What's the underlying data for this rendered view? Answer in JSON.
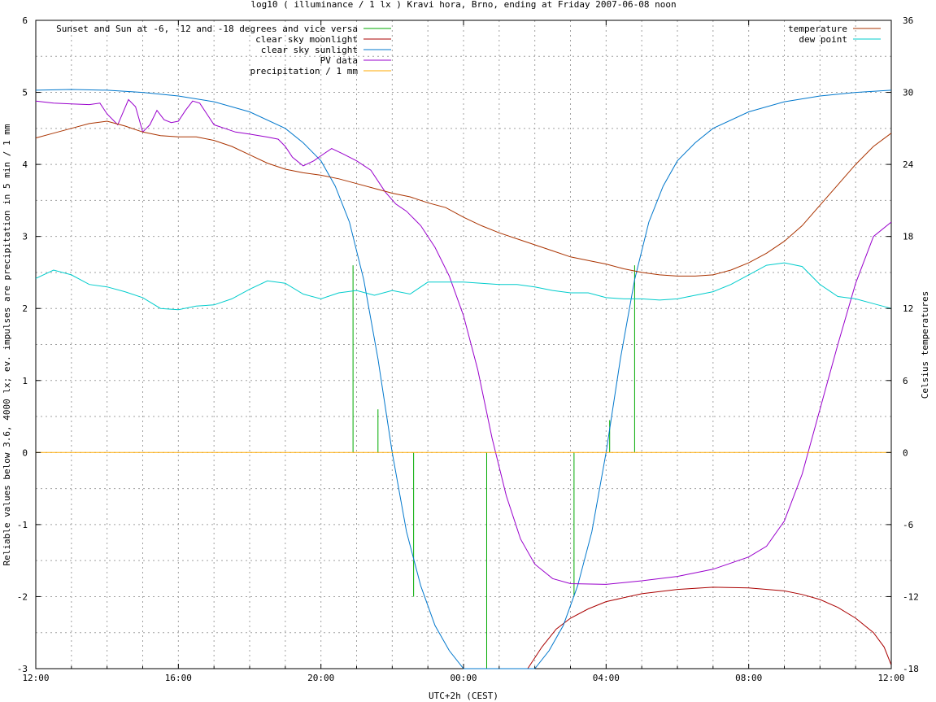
{
  "chart_data": {
    "type": "line",
    "title": "log10 ( illuminance / 1 lx ) Kravi hora, Brno, ending at Friday 2007-06-08 noon",
    "xlabel": "UTC+2h (CEST)",
    "ylabel": "Reliable values below 3.6, 4000 lx; ev. impulses are precipitation in 5 min / 1 mm",
    "y2label": "Celsius temperatures",
    "xlim": [
      0,
      24
    ],
    "ylim": [
      -3,
      6
    ],
    "y2lim": [
      -18,
      36
    ],
    "grid": true,
    "x_ticks": [
      {
        "x": 0,
        "label": "12:00"
      },
      {
        "x": 4,
        "label": "16:00"
      },
      {
        "x": 8,
        "label": "20:00"
      },
      {
        "x": 12,
        "label": "00:00"
      },
      {
        "x": 16,
        "label": "04:00"
      },
      {
        "x": 20,
        "label": "08:00"
      },
      {
        "x": 24,
        "label": "12:00"
      }
    ],
    "y_ticks": [
      {
        "v": -3,
        "label": "-3"
      },
      {
        "v": -2,
        "label": "-2"
      },
      {
        "v": -1,
        "label": "-1"
      },
      {
        "v": 0,
        "label": "0"
      },
      {
        "v": 1,
        "label": "1"
      },
      {
        "v": 2,
        "label": "2"
      },
      {
        "v": 3,
        "label": "3"
      },
      {
        "v": 4,
        "label": "4"
      },
      {
        "v": 5,
        "label": "5"
      },
      {
        "v": 6,
        "label": "6"
      }
    ],
    "y2_ticks": [
      {
        "v": -18,
        "label": "-18"
      },
      {
        "v": -12,
        "label": "-12"
      },
      {
        "v": -6,
        "label": "-6"
      },
      {
        "v": 0,
        "label": "0"
      },
      {
        "v": 6,
        "label": "6"
      },
      {
        "v": 12,
        "label": "12"
      },
      {
        "v": 18,
        "label": "18"
      },
      {
        "v": 24,
        "label": "24"
      },
      {
        "v": 30,
        "label": "30"
      },
      {
        "v": 36,
        "label": "36"
      }
    ],
    "legend_left": [
      {
        "label": "Sunset and Sun at -6, -12 and -18 degrees and vice versa",
        "color": "#00aa00"
      },
      {
        "label": "clear sky moonlight",
        "color": "#aa0000"
      },
      {
        "label": "clear sky sunlight",
        "color": "#0077cc"
      },
      {
        "label": "PV data",
        "color": "#9900cc"
      },
      {
        "label": "precipitation / 1 mm",
        "color": "#ffaa00"
      }
    ],
    "legend_right": [
      {
        "label": "temperature",
        "color": "#aa3300"
      },
      {
        "label": "dew point",
        "color": "#00cccc"
      }
    ],
    "series": [
      {
        "name": "Sunset and Sun at -6, -12 and -18 degrees and vice versa",
        "color": "#00aa00",
        "type": "impulse",
        "points": [
          [
            8.9,
            2.6
          ],
          [
            9.6,
            0.6
          ],
          [
            10.6,
            -2.0
          ],
          [
            12.65,
            -3.0
          ],
          [
            15.1,
            -2.0
          ],
          [
            16.1,
            0.45
          ],
          [
            16.8,
            2.6
          ]
        ]
      },
      {
        "name": "clear sky moonlight",
        "color": "#aa0000",
        "axis": "y",
        "points": [
          [
            13.8,
            -3.0
          ],
          [
            14.2,
            -2.7
          ],
          [
            14.6,
            -2.45
          ],
          [
            15.0,
            -2.3
          ],
          [
            15.5,
            -2.17
          ],
          [
            16.0,
            -2.07
          ],
          [
            17.0,
            -1.96
          ],
          [
            18.0,
            -1.9
          ],
          [
            19.0,
            -1.87
          ],
          [
            20.0,
            -1.88
          ],
          [
            21.0,
            -1.92
          ],
          [
            21.5,
            -1.97
          ],
          [
            22.0,
            -2.04
          ],
          [
            22.5,
            -2.15
          ],
          [
            23.0,
            -2.3
          ],
          [
            23.5,
            -2.5
          ],
          [
            23.8,
            -2.7
          ],
          [
            24.0,
            -2.95
          ]
        ]
      },
      {
        "name": "clear sky sunlight",
        "color": "#0077cc",
        "axis": "y",
        "points": [
          [
            0,
            5.03
          ],
          [
            1.0,
            5.04
          ],
          [
            2.0,
            5.03
          ],
          [
            3.0,
            5.0
          ],
          [
            4.0,
            4.95
          ],
          [
            5.0,
            4.87
          ],
          [
            6.0,
            4.73
          ],
          [
            7.0,
            4.5
          ],
          [
            7.5,
            4.3
          ],
          [
            8.0,
            4.05
          ],
          [
            8.4,
            3.7
          ],
          [
            8.8,
            3.2
          ],
          [
            9.2,
            2.4
          ],
          [
            9.6,
            1.3
          ],
          [
            10.0,
            0.0
          ],
          [
            10.4,
            -1.1
          ],
          [
            10.8,
            -1.85
          ],
          [
            11.2,
            -2.4
          ],
          [
            11.6,
            -2.75
          ],
          [
            12.0,
            -3.0
          ],
          [
            14.0,
            -3.0
          ],
          [
            14.4,
            -2.75
          ],
          [
            14.8,
            -2.4
          ],
          [
            15.2,
            -1.85
          ],
          [
            15.6,
            -1.1
          ],
          [
            16.0,
            0.0
          ],
          [
            16.4,
            1.3
          ],
          [
            16.8,
            2.4
          ],
          [
            17.2,
            3.2
          ],
          [
            17.6,
            3.7
          ],
          [
            18.0,
            4.05
          ],
          [
            18.5,
            4.3
          ],
          [
            19.0,
            4.5
          ],
          [
            20.0,
            4.73
          ],
          [
            21.0,
            4.87
          ],
          [
            22.0,
            4.95
          ],
          [
            23.0,
            5.0
          ],
          [
            24.0,
            5.03
          ]
        ]
      },
      {
        "name": "PV data",
        "color": "#9900cc",
        "axis": "y",
        "points": [
          [
            0,
            4.88
          ],
          [
            0.5,
            4.85
          ],
          [
            1.0,
            4.84
          ],
          [
            1.5,
            4.83
          ],
          [
            1.8,
            4.85
          ],
          [
            2.0,
            4.7
          ],
          [
            2.3,
            4.55
          ],
          [
            2.6,
            4.9
          ],
          [
            2.8,
            4.8
          ],
          [
            3.0,
            4.45
          ],
          [
            3.2,
            4.55
          ],
          [
            3.4,
            4.75
          ],
          [
            3.6,
            4.62
          ],
          [
            3.8,
            4.58
          ],
          [
            4.0,
            4.6
          ],
          [
            4.2,
            4.75
          ],
          [
            4.4,
            4.88
          ],
          [
            4.6,
            4.85
          ],
          [
            4.8,
            4.7
          ],
          [
            5.0,
            4.55
          ],
          [
            5.3,
            4.5
          ],
          [
            5.6,
            4.45
          ],
          [
            6.0,
            4.42
          ],
          [
            6.5,
            4.38
          ],
          [
            6.8,
            4.35
          ],
          [
            7.0,
            4.25
          ],
          [
            7.2,
            4.1
          ],
          [
            7.5,
            3.98
          ],
          [
            7.8,
            4.05
          ],
          [
            8.0,
            4.12
          ],
          [
            8.3,
            4.22
          ],
          [
            8.6,
            4.15
          ],
          [
            9.0,
            4.05
          ],
          [
            9.4,
            3.92
          ],
          [
            9.8,
            3.62
          ],
          [
            10.1,
            3.45
          ],
          [
            10.4,
            3.35
          ],
          [
            10.8,
            3.15
          ],
          [
            11.2,
            2.85
          ],
          [
            11.6,
            2.45
          ],
          [
            12.0,
            1.9
          ],
          [
            12.4,
            1.15
          ],
          [
            12.8,
            0.2
          ],
          [
            13.2,
            -0.6
          ],
          [
            13.6,
            -1.2
          ],
          [
            14.0,
            -1.55
          ],
          [
            14.5,
            -1.75
          ],
          [
            15.0,
            -1.82
          ],
          [
            16.0,
            -1.83
          ],
          [
            17.0,
            -1.78
          ],
          [
            18.0,
            -1.72
          ],
          [
            19.0,
            -1.62
          ],
          [
            20.0,
            -1.45
          ],
          [
            20.5,
            -1.3
          ],
          [
            21.0,
            -0.95
          ],
          [
            21.5,
            -0.3
          ],
          [
            22.0,
            0.6
          ],
          [
            22.5,
            1.5
          ],
          [
            23.0,
            2.35
          ],
          [
            23.5,
            3.0
          ],
          [
            24.0,
            3.2
          ]
        ]
      },
      {
        "name": "precipitation / 1 mm",
        "color": "#ffaa00",
        "axis": "y",
        "points": [
          [
            0,
            0.0
          ],
          [
            24,
            0.0
          ]
        ]
      },
      {
        "name": "temperature",
        "color": "#aa3300",
        "axis": "y2",
        "points": [
          [
            0,
            26.2
          ],
          [
            0.5,
            26.6
          ],
          [
            1.0,
            27.0
          ],
          [
            1.5,
            27.4
          ],
          [
            2.0,
            27.6
          ],
          [
            2.5,
            27.2
          ],
          [
            3.0,
            26.7
          ],
          [
            3.5,
            26.4
          ],
          [
            4.0,
            26.3
          ],
          [
            4.5,
            26.3
          ],
          [
            5.0,
            26.0
          ],
          [
            5.5,
            25.5
          ],
          [
            6.0,
            24.8
          ],
          [
            6.5,
            24.1
          ],
          [
            7.0,
            23.6
          ],
          [
            7.5,
            23.3
          ],
          [
            8.0,
            23.1
          ],
          [
            8.5,
            22.8
          ],
          [
            9.0,
            22.4
          ],
          [
            9.5,
            22.0
          ],
          [
            10.0,
            21.6
          ],
          [
            10.5,
            21.3
          ],
          [
            11.0,
            20.8
          ],
          [
            11.5,
            20.4
          ],
          [
            12.0,
            19.6
          ],
          [
            12.5,
            18.9
          ],
          [
            13.0,
            18.3
          ],
          [
            13.5,
            17.8
          ],
          [
            14.0,
            17.3
          ],
          [
            14.5,
            16.8
          ],
          [
            15.0,
            16.3
          ],
          [
            15.5,
            16.0
          ],
          [
            16.0,
            15.7
          ],
          [
            16.5,
            15.3
          ],
          [
            17.0,
            15.0
          ],
          [
            17.5,
            14.8
          ],
          [
            18.0,
            14.7
          ],
          [
            18.5,
            14.7
          ],
          [
            19.0,
            14.8
          ],
          [
            19.5,
            15.2
          ],
          [
            20.0,
            15.8
          ],
          [
            20.5,
            16.6
          ],
          [
            21.0,
            17.6
          ],
          [
            21.5,
            18.9
          ],
          [
            22.0,
            20.6
          ],
          [
            22.5,
            22.3
          ],
          [
            23.0,
            24.0
          ],
          [
            23.5,
            25.5
          ],
          [
            24.0,
            26.6
          ]
        ]
      },
      {
        "name": "dew point",
        "color": "#00cccc",
        "axis": "y2",
        "points": [
          [
            0,
            14.5
          ],
          [
            0.5,
            15.2
          ],
          [
            1.0,
            14.8
          ],
          [
            1.5,
            14.0
          ],
          [
            2.0,
            13.8
          ],
          [
            2.5,
            13.4
          ],
          [
            3.0,
            12.9
          ],
          [
            3.5,
            12.0
          ],
          [
            4.0,
            11.9
          ],
          [
            4.5,
            12.2
          ],
          [
            5.0,
            12.3
          ],
          [
            5.5,
            12.8
          ],
          [
            6.0,
            13.6
          ],
          [
            6.5,
            14.3
          ],
          [
            7.0,
            14.1
          ],
          [
            7.5,
            13.2
          ],
          [
            8.0,
            12.8
          ],
          [
            8.5,
            13.3
          ],
          [
            9.0,
            13.5
          ],
          [
            9.5,
            13.1
          ],
          [
            10.0,
            13.5
          ],
          [
            10.5,
            13.2
          ],
          [
            11.0,
            14.2
          ],
          [
            11.5,
            14.2
          ],
          [
            12.0,
            14.2
          ],
          [
            12.5,
            14.1
          ],
          [
            13.0,
            14.0
          ],
          [
            13.5,
            14.0
          ],
          [
            14.0,
            13.8
          ],
          [
            14.5,
            13.5
          ],
          [
            15.0,
            13.3
          ],
          [
            15.5,
            13.3
          ],
          [
            16.0,
            12.9
          ],
          [
            16.5,
            12.8
          ],
          [
            17.0,
            12.8
          ],
          [
            17.5,
            12.7
          ],
          [
            18.0,
            12.8
          ],
          [
            18.5,
            13.1
          ],
          [
            19.0,
            13.4
          ],
          [
            19.5,
            14.0
          ],
          [
            20.0,
            14.8
          ],
          [
            20.5,
            15.6
          ],
          [
            21.0,
            15.8
          ],
          [
            21.5,
            15.5
          ],
          [
            22.0,
            14.0
          ],
          [
            22.5,
            13.0
          ],
          [
            23.0,
            12.8
          ],
          [
            23.5,
            12.4
          ],
          [
            24.0,
            12.0
          ]
        ]
      }
    ]
  }
}
